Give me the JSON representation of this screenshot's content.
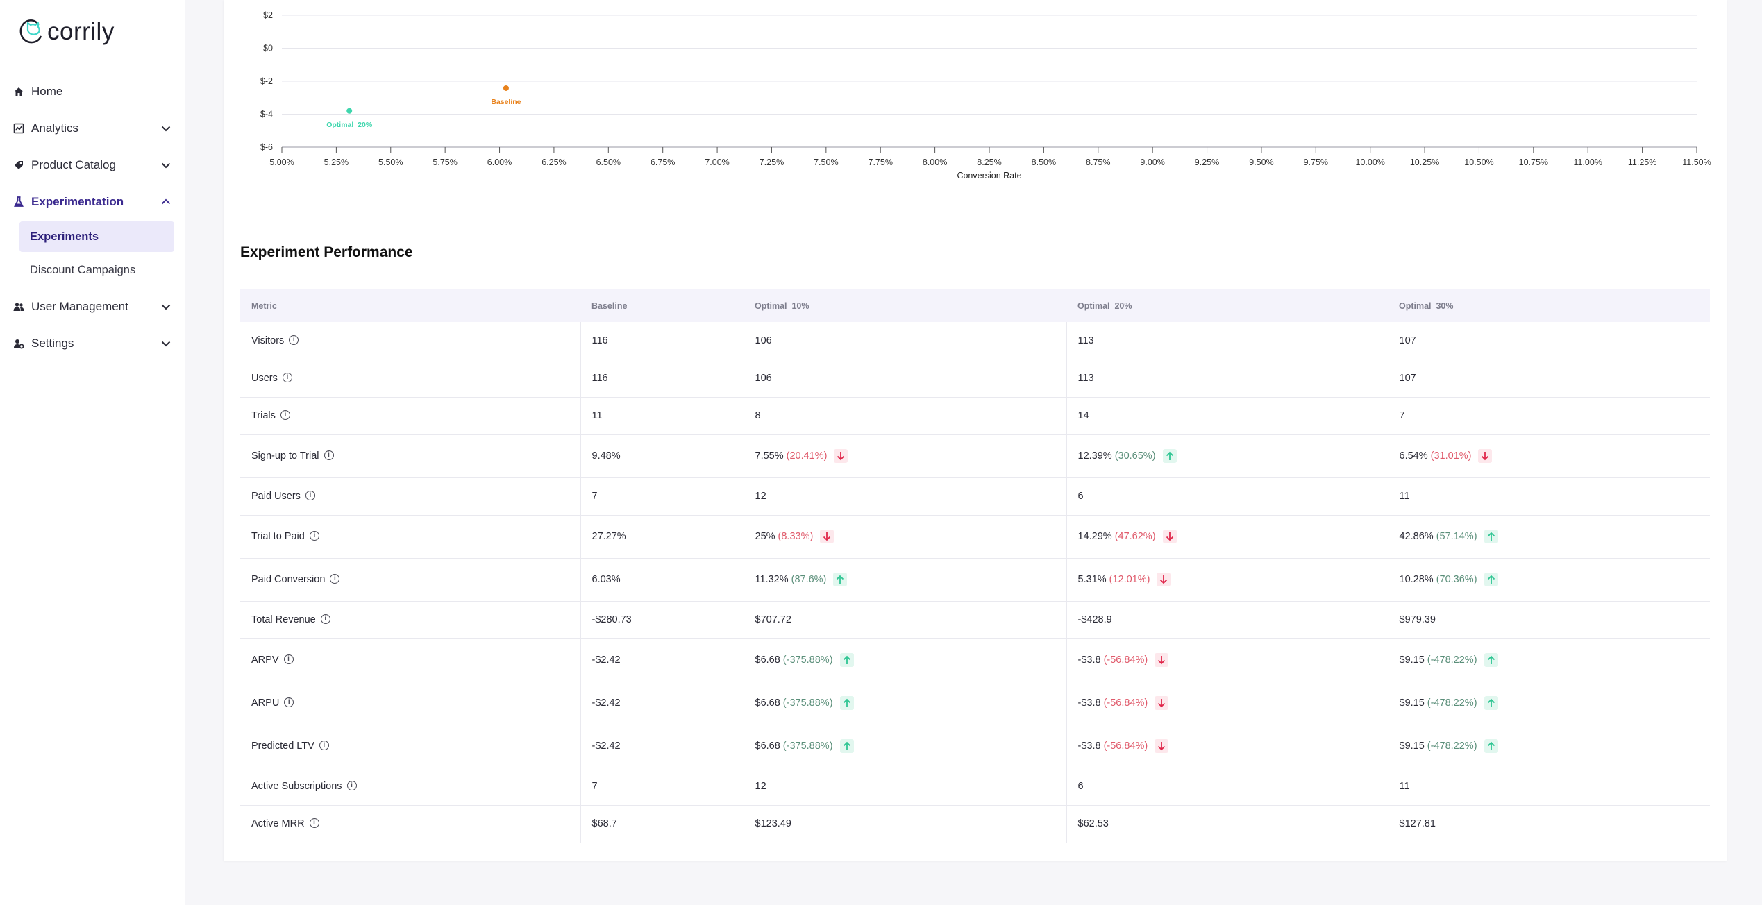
{
  "brand": {
    "name": "corrily"
  },
  "sidebar": {
    "items": [
      {
        "label": "Home",
        "icon": "home-icon"
      },
      {
        "label": "Analytics",
        "icon": "analytics-icon"
      },
      {
        "label": "Product Catalog",
        "icon": "tag-icon"
      },
      {
        "label": "Experimentation",
        "icon": "flask-icon",
        "active": true
      },
      {
        "label": "User Management",
        "icon": "users-icon"
      },
      {
        "label": "Settings",
        "icon": "settings-icon"
      }
    ],
    "sub_items": [
      {
        "label": "Experiments",
        "active": true
      },
      {
        "label": "Discount Campaigns"
      }
    ]
  },
  "chart_data": {
    "type": "scatter",
    "xlabel": "Conversion Rate",
    "ylabel": "",
    "xlim": [
      5.0,
      11.5
    ],
    "ylim": [
      -6,
      2
    ],
    "x_ticks": [
      "5.00%",
      "5.25%",
      "5.50%",
      "5.75%",
      "6.00%",
      "6.25%",
      "6.50%",
      "6.75%",
      "7.00%",
      "7.25%",
      "7.50%",
      "7.75%",
      "8.00%",
      "8.25%",
      "8.50%",
      "8.75%",
      "9.00%",
      "9.25%",
      "9.50%",
      "9.75%",
      "10.00%",
      "10.25%",
      "10.50%",
      "10.75%",
      "11.00%",
      "11.25%",
      "11.50%"
    ],
    "y_ticks": [
      "$2",
      "$0",
      "$-2",
      "$-4",
      "$-6"
    ],
    "grid": true,
    "points": [
      {
        "name": "Optimal_20%",
        "x": 5.31,
        "y": -3.8,
        "color": "#3fd6ad"
      },
      {
        "name": "Baseline",
        "x": 6.03,
        "y": -2.42,
        "color": "#e8821c"
      }
    ]
  },
  "performance": {
    "title": "Experiment Performance",
    "columns": [
      "Metric",
      "Baseline",
      "Optimal_10%",
      "Optimal_20%",
      "Optimal_30%"
    ],
    "rows": [
      {
        "metric": "Visitors",
        "cells": [
          {
            "v": "116"
          },
          {
            "v": "106"
          },
          {
            "v": "113"
          },
          {
            "v": "107"
          }
        ]
      },
      {
        "metric": "Users",
        "cells": [
          {
            "v": "116"
          },
          {
            "v": "106"
          },
          {
            "v": "113"
          },
          {
            "v": "107"
          }
        ]
      },
      {
        "metric": "Trials",
        "cells": [
          {
            "v": "11"
          },
          {
            "v": "8"
          },
          {
            "v": "14"
          },
          {
            "v": "7"
          }
        ]
      },
      {
        "metric": "Sign-up to Trial",
        "tall": true,
        "cells": [
          {
            "v": "9.48%"
          },
          {
            "v": "7.55%",
            "d": "(20.41%)",
            "dir": "down"
          },
          {
            "v": "12.39%",
            "d": "(30.65%)",
            "dir": "up"
          },
          {
            "v": "6.54%",
            "d": "(31.01%)",
            "dir": "down"
          }
        ]
      },
      {
        "metric": "Paid Users",
        "cells": [
          {
            "v": "7"
          },
          {
            "v": "12"
          },
          {
            "v": "6"
          },
          {
            "v": "11"
          }
        ]
      },
      {
        "metric": "Trial to Paid",
        "tall": true,
        "cells": [
          {
            "v": "27.27%"
          },
          {
            "v": "25%",
            "d": "(8.33%)",
            "dir": "down"
          },
          {
            "v": "14.29%",
            "d": "(47.62%)",
            "dir": "down"
          },
          {
            "v": "42.86%",
            "d": "(57.14%)",
            "dir": "up"
          }
        ]
      },
      {
        "metric": "Paid Conversion",
        "tall": true,
        "cells": [
          {
            "v": "6.03%"
          },
          {
            "v": "11.32%",
            "d": "(87.6%)",
            "dir": "up"
          },
          {
            "v": "5.31%",
            "d": "(12.01%)",
            "dir": "down"
          },
          {
            "v": "10.28%",
            "d": "(70.36%)",
            "dir": "up"
          }
        ]
      },
      {
        "metric": "Total Revenue",
        "cells": [
          {
            "v": "-$280.73"
          },
          {
            "v": "$707.72"
          },
          {
            "v": "-$428.9"
          },
          {
            "v": "$979.39"
          }
        ]
      },
      {
        "metric": "ARPV",
        "tall": true,
        "cells": [
          {
            "v": "-$2.42"
          },
          {
            "v": "$6.68",
            "d": "(-375.88%)",
            "dir": "up"
          },
          {
            "v": "-$3.8",
            "d": "(-56.84%)",
            "dir": "down"
          },
          {
            "v": "$9.15",
            "d": "(-478.22%)",
            "dir": "up"
          }
        ]
      },
      {
        "metric": "ARPU",
        "tall": true,
        "cells": [
          {
            "v": "-$2.42"
          },
          {
            "v": "$6.68",
            "d": "(-375.88%)",
            "dir": "up"
          },
          {
            "v": "-$3.8",
            "d": "(-56.84%)",
            "dir": "down"
          },
          {
            "v": "$9.15",
            "d": "(-478.22%)",
            "dir": "up"
          }
        ]
      },
      {
        "metric": "Predicted LTV",
        "tall": true,
        "cells": [
          {
            "v": "-$2.42"
          },
          {
            "v": "$6.68",
            "d": "(-375.88%)",
            "dir": "up"
          },
          {
            "v": "-$3.8",
            "d": "(-56.84%)",
            "dir": "down"
          },
          {
            "v": "$9.15",
            "d": "(-478.22%)",
            "dir": "up"
          }
        ]
      },
      {
        "metric": "Active Subscriptions",
        "cells": [
          {
            "v": "7"
          },
          {
            "v": "12"
          },
          {
            "v": "6"
          },
          {
            "v": "11"
          }
        ]
      },
      {
        "metric": "Active MRR",
        "cells": [
          {
            "v": "$68.7"
          },
          {
            "v": "$123.49"
          },
          {
            "v": "$62.53"
          },
          {
            "v": "$127.81"
          }
        ]
      }
    ]
  }
}
